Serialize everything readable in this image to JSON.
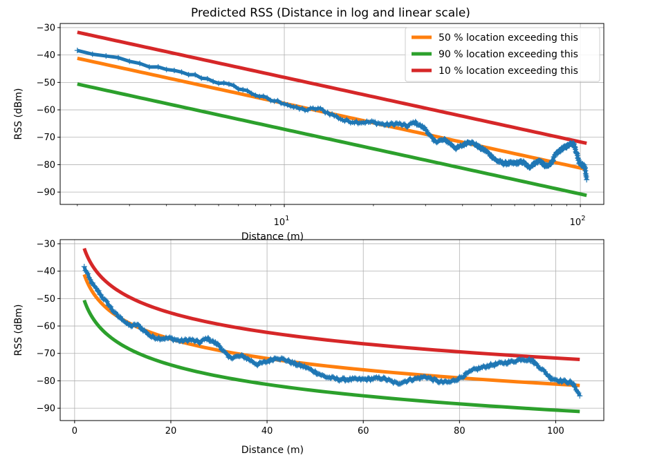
{
  "figure": {
    "title": "Predicted RSS (Distance in log and linear scale)"
  },
  "colors": {
    "measured": "#1f77b4",
    "p50": "#ff7f0e",
    "p90": "#2ca02c",
    "p10": "#d62728",
    "grid": "#b0b0b0"
  },
  "chart_data": [
    {
      "type": "line",
      "title": "Predicted RSS (Distance in log and linear scale)",
      "xlabel": "Distance (m)",
      "ylabel": "RSS (dBm)",
      "xscale": "log",
      "xlim": [
        1.75,
        120
      ],
      "ylim": [
        -94.5,
        -28.5
      ],
      "yticks": [
        -30,
        -40,
        -50,
        -60,
        -70,
        -80,
        -90
      ],
      "yticklabels": [
        "−30",
        "−40",
        "−50",
        "−60",
        "−70",
        "−80",
        "−90"
      ],
      "xticks": [
        10,
        100
      ],
      "xticklabels": [
        {
          "base": "10",
          "exp": "1"
        },
        {
          "base": "10",
          "exp": "2"
        }
      ],
      "grid": true,
      "legend": {
        "placement": "top-right",
        "entries": [
          {
            "label": "50 % location exceeding this",
            "color": "#ff7f0e"
          },
          {
            "label": "90 % location exceeding this",
            "color": "#2ca02c"
          },
          {
            "label": "10 % location exceeding this",
            "color": "#d62728"
          }
        ]
      },
      "series": [
        {
          "name": "50 % location exceeding this",
          "color": "#ff7f0e",
          "model": "log-distance",
          "x": [
            2,
            105
          ],
          "y": [
            -41.2,
            -81.7
          ]
        },
        {
          "name": "90 % location exceeding this",
          "color": "#2ca02c",
          "model": "log-distance",
          "x": [
            2,
            105
          ],
          "y": [
            -50.6,
            -91.2
          ]
        },
        {
          "name": "10 % location exceeding this",
          "color": "#d62728",
          "model": "log-distance",
          "x": [
            2,
            105
          ],
          "y": [
            -31.7,
            -72.2
          ]
        },
        {
          "color": "#1f77b4",
          "marker": "+",
          "x": [
            2,
            2.5,
            3,
            4,
            5,
            6,
            7,
            8,
            9,
            10,
            11,
            12,
            13,
            14,
            16,
            18,
            20,
            22,
            24,
            26,
            27.5,
            30,
            32,
            35,
            38,
            40,
            42,
            44,
            46,
            48,
            52,
            55,
            58,
            60,
            64,
            67,
            70,
            73,
            76,
            78,
            80,
            83,
            86,
            89,
            91,
            93,
            95,
            97,
            99,
            101,
            103,
            104,
            105
          ],
          "y": [
            -38.5,
            -40.5,
            -42.5,
            -45.5,
            -47.5,
            -50,
            -52,
            -54.5,
            -56.5,
            -57.5,
            -59.5,
            -60,
            -59.5,
            -61,
            -64,
            -64.5,
            -64.5,
            -65.5,
            -65,
            -66,
            -64.5,
            -67,
            -71.5,
            -71,
            -74,
            -73,
            -71.5,
            -72.5,
            -74,
            -75,
            -78.5,
            -79.5,
            -79.5,
            -79.5,
            -79,
            -81,
            -79.5,
            -78.5,
            -80.5,
            -80.5,
            -79,
            -76,
            -74.5,
            -73.5,
            -73,
            -72,
            -72.5,
            -75.5,
            -79,
            -80,
            -80.5,
            -82,
            -85.5
          ]
        }
      ]
    },
    {
      "type": "line",
      "xlabel": "Distance (m)",
      "ylabel": "RSS (dBm)",
      "xscale": "linear",
      "xlim": [
        -3,
        110
      ],
      "ylim": [
        -94.5,
        -28.5
      ],
      "yticks": [
        -30,
        -40,
        -50,
        -60,
        -70,
        -80,
        -90
      ],
      "yticklabels": [
        "−30",
        "−40",
        "−50",
        "−60",
        "−70",
        "−80",
        "−90"
      ],
      "xticks": [
        0,
        20,
        40,
        60,
        80,
        100
      ],
      "xticklabels": [
        "0",
        "20",
        "40",
        "60",
        "80",
        "100"
      ],
      "grid": true,
      "series": [
        {
          "color": "#ff7f0e",
          "model": "log-distance",
          "x": [
            2,
            105
          ],
          "y": [
            -41.2,
            -81.7
          ]
        },
        {
          "color": "#2ca02c",
          "model": "log-distance",
          "x": [
            2,
            105
          ],
          "y": [
            -50.6,
            -91.2
          ]
        },
        {
          "color": "#d62728",
          "model": "log-distance",
          "x": [
            2,
            105
          ],
          "y": [
            -31.7,
            -72.2
          ]
        },
        {
          "color": "#1f77b4",
          "marker": "+",
          "x": [
            2,
            2.5,
            3,
            4,
            5,
            6,
            7,
            8,
            9,
            10,
            11,
            12,
            13,
            14,
            16,
            18,
            20,
            22,
            24,
            26,
            27.5,
            30,
            32,
            35,
            38,
            40,
            42,
            44,
            46,
            48,
            52,
            55,
            58,
            60,
            64,
            67,
            70,
            73,
            76,
            78,
            80,
            83,
            86,
            89,
            91,
            93,
            95,
            97,
            99,
            101,
            103,
            104,
            105
          ],
          "y": [
            -38.5,
            -40.5,
            -42.5,
            -45.5,
            -47.5,
            -50,
            -52,
            -54.5,
            -56.5,
            -57.5,
            -59.5,
            -60,
            -59.5,
            -61,
            -64,
            -64.5,
            -64.5,
            -65.5,
            -65,
            -66,
            -64.5,
            -67,
            -71.5,
            -71,
            -74,
            -73,
            -71.5,
            -72.5,
            -74,
            -75,
            -78.5,
            -79.5,
            -79.5,
            -79.5,
            -79,
            -81,
            -79.5,
            -78.5,
            -80.5,
            -80.5,
            -79,
            -76,
            -74.5,
            -73.5,
            -73,
            -72,
            -72.5,
            -75.5,
            -79,
            -80,
            -80.5,
            -82,
            -85.5
          ]
        }
      ]
    }
  ]
}
